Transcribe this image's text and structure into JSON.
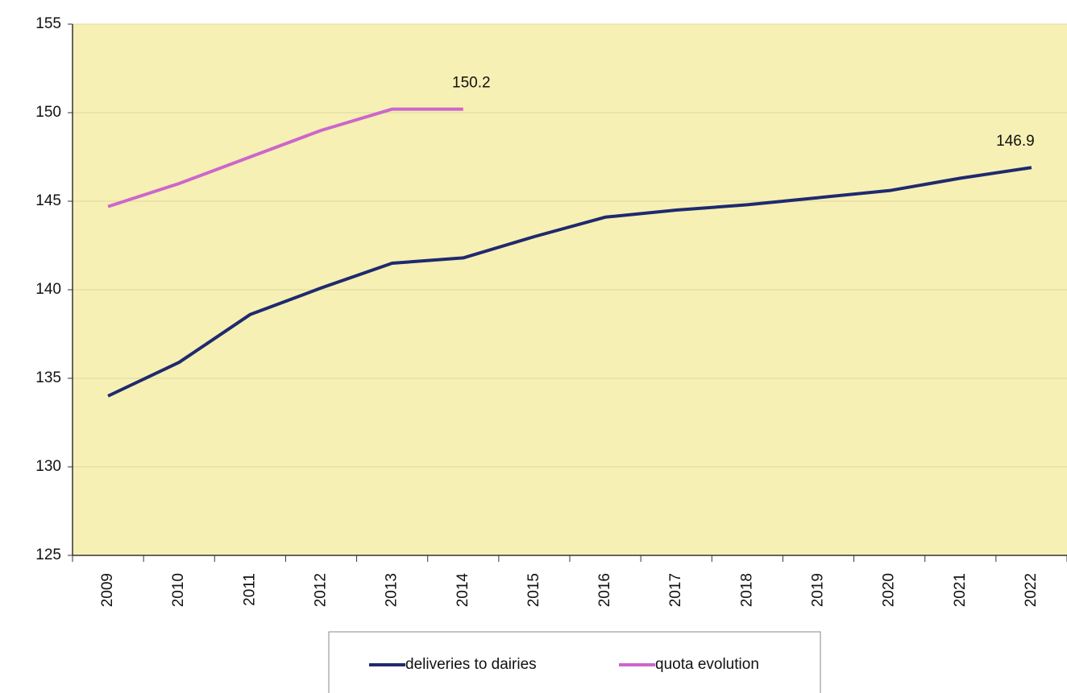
{
  "chart_data": {
    "type": "line",
    "categories": [
      "2009",
      "2010",
      "2011",
      "2012",
      "2013",
      "2014",
      "2015",
      "2016",
      "2017",
      "2018",
      "2019",
      "2020",
      "2021",
      "2022"
    ],
    "series": [
      {
        "name": "deliveries to dairies",
        "color": "#1f2a6e",
        "values": [
          134.0,
          135.9,
          138.6,
          140.1,
          141.5,
          141.8,
          143.0,
          144.1,
          144.5,
          144.8,
          145.2,
          145.6,
          146.3,
          146.9
        ]
      },
      {
        "name": "quota evolution",
        "color": "#cc66cc",
        "values": [
          144.7,
          146.0,
          147.5,
          149.0,
          150.2,
          150.2,
          null,
          null,
          null,
          null,
          null,
          null,
          null,
          null
        ]
      }
    ],
    "ylim": [
      125,
      155
    ],
    "yticks": [
      125,
      130,
      135,
      140,
      145,
      150,
      155
    ],
    "grid": true,
    "background": "#f7f0b4",
    "legend": "bottom"
  }
}
